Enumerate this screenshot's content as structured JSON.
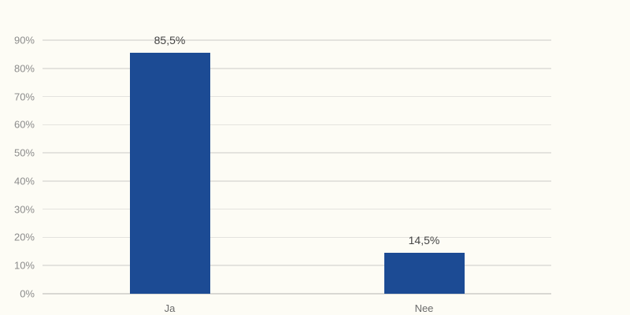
{
  "chart_data": {
    "type": "bar",
    "title": "",
    "categories": [
      "Ja",
      "Nee"
    ],
    "values": [
      85.5,
      14.5
    ],
    "value_labels": [
      "85,5%",
      "14,5%"
    ],
    "ylim": [
      0,
      90
    ],
    "ytick_step": 10,
    "ytick_labels": [
      "0%",
      "10%",
      "20%",
      "30%",
      "40%",
      "50%",
      "60%",
      "70%",
      "80%",
      "90%"
    ],
    "grid": true,
    "legend": false,
    "colors": {
      "bar": "#1c4b94",
      "background": "#fdfcf5",
      "gridline": "#e4e3de",
      "baseline": "#d9d8d3",
      "tick_label": "#8c8c8c",
      "category_label": "#6b6b6b",
      "data_label": "#454545"
    }
  }
}
